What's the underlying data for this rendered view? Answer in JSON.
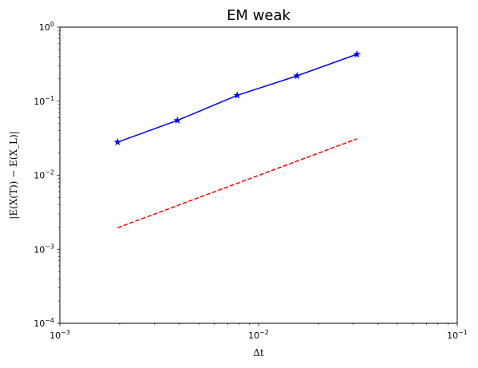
{
  "chart_data": {
    "type": "line",
    "title": "EM weak",
    "xlabel": "Δt",
    "ylabel": "|E(X(T)) − E(X_L)|",
    "xscale": "log",
    "yscale": "log",
    "xlim": [
      0.001,
      0.1
    ],
    "ylim": [
      0.0001,
      1
    ],
    "grid": false,
    "legend": "none",
    "x_ticks": [
      {
        "value": 0.001,
        "base": "10",
        "exp": "−3"
      },
      {
        "value": 0.01,
        "base": "10",
        "exp": "−2"
      },
      {
        "value": 0.1,
        "base": "10",
        "exp": "−1"
      }
    ],
    "y_ticks": [
      {
        "value": 0.0001,
        "base": "10",
        "exp": "−4"
      },
      {
        "value": 0.001,
        "base": "10",
        "exp": "−3"
      },
      {
        "value": 0.01,
        "base": "10",
        "exp": "−2"
      },
      {
        "value": 0.1,
        "base": "10",
        "exp": "−1"
      },
      {
        "value": 1,
        "base": "10",
        "exp": "0"
      }
    ],
    "series": [
      {
        "style": "solid",
        "marker": "star",
        "color": "#0000ff",
        "x": [
          0.001953125,
          0.00390625,
          0.0078125,
          0.015625,
          0.03125
        ],
        "y": [
          0.028,
          0.055,
          0.12,
          0.22,
          0.43
        ]
      },
      {
        "style": "dashed",
        "marker": "none",
        "color": "#ff0000",
        "x": [
          0.001953125,
          0.03125
        ],
        "y": [
          0.00195,
          0.031
        ]
      }
    ]
  }
}
